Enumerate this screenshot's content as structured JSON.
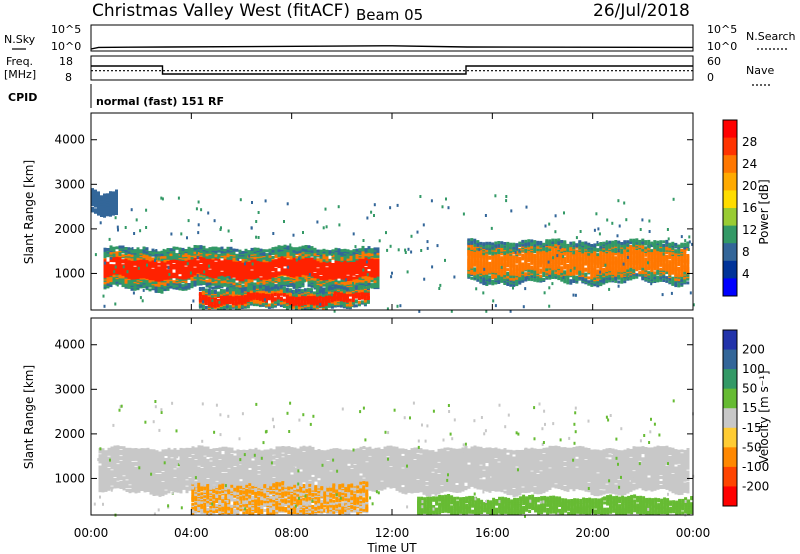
{
  "header": {
    "station": "Christmas Valley West (fitACF)",
    "beam": "Beam 05",
    "date": "26/Jul/2018"
  },
  "top_panels": {
    "nsky": {
      "label": "N.Sky",
      "ticks": [
        "10^5",
        "10^0"
      ]
    },
    "nsearch": {
      "label": "N.Search",
      "ticks": [
        "10^5",
        "10^0"
      ]
    },
    "freq": {
      "label_line1": "Freq.",
      "label_line2": "[MHz]",
      "ticks": [
        "18",
        "8"
      ]
    },
    "nave": {
      "label": "Nave",
      "ticks": [
        "60",
        "0"
      ]
    },
    "cpid": {
      "label": "CPID",
      "value": "normal (fast) 151 RF"
    }
  },
  "power_colorbar": {
    "label": "Power [dB]",
    "ticks": [
      "28",
      "24",
      "20",
      "16",
      "12",
      "8",
      "4"
    ],
    "colors": [
      "#ff0000",
      "#ff3300",
      "#ff7700",
      "#ffaa00",
      "#ffdd00",
      "#99cc33",
      "#339966",
      "#336699",
      "#003399",
      "#0000ff"
    ]
  },
  "velocity_colorbar": {
    "label": "Velocity [m s⁻¹]",
    "ticks": [
      "200",
      "100",
      "50",
      "15",
      "-15",
      "-50",
      "-100",
      "-200"
    ],
    "colors": [
      "#2233aa",
      "#336699",
      "#339966",
      "#66bb33",
      "#c8c8c8",
      "#ffcc33",
      "#ff8800",
      "#ff4400",
      "#ff0000"
    ]
  },
  "colors": {
    "power_strong": "#ff2200",
    "power_mid": "#ff7700",
    "power_edge": "#339966",
    "power_weak": "#336699",
    "vel_gray": "#c8c8c8",
    "vel_orange": "#ff9900",
    "vel_green": "#66bb33"
  },
  "chart_data": {
    "type": "heatmap",
    "xlabel": "Time UT",
    "ylabel": "Slant Range [km]",
    "x_ticks": [
      "00:00",
      "04:00",
      "08:00",
      "12:00",
      "16:00",
      "20:00",
      "00:00"
    ],
    "y_ticks": [
      "1000",
      "2000",
      "3000",
      "4000"
    ],
    "xlim_hours": [
      0,
      24
    ],
    "ylim_km": [
      180,
      4600
    ],
    "nsky_series": {
      "x_hours": [
        0,
        0.3,
        3,
        12,
        15,
        24
      ],
      "log10_values": [
        0,
        0.4,
        0.5,
        0.8,
        0.5,
        0.4
      ]
    },
    "freq_series": {
      "x_hours": [
        0,
        2.85,
        2.85,
        14.95,
        14.95,
        24
      ],
      "mhz": [
        14,
        14,
        10,
        10,
        14,
        14
      ]
    },
    "nave_series": {
      "x_hours": [
        0,
        2.85,
        2.85,
        14.95,
        14.95,
        24
      ],
      "values": [
        22,
        22,
        22,
        22,
        22,
        22
      ]
    },
    "power_regions": [
      {
        "band": "main",
        "start_h": 0.5,
        "end_h": 11.5,
        "min_km": 700,
        "max_km": 1600,
        "db": 24
      },
      {
        "band": "main",
        "start_h": 15,
        "end_h": 23.8,
        "min_km": 850,
        "max_km": 1750,
        "db": 18
      },
      {
        "band": "low",
        "start_h": 4.3,
        "end_h": 11,
        "min_km": 250,
        "max_km": 700,
        "db": 26
      },
      {
        "band": "high",
        "start_h": 0,
        "end_h": 1,
        "min_km": 2400,
        "max_km": 2900,
        "db": 8
      }
    ],
    "velocity_regions": [
      {
        "band": "main",
        "start_h": 0.3,
        "end_h": 23.8,
        "min_km": 750,
        "max_km": 1700,
        "velocity": 0
      },
      {
        "band": "low",
        "start_h": 4,
        "end_h": 11,
        "min_km": 200,
        "max_km": 900,
        "velocity": -70
      },
      {
        "band": "low",
        "start_h": 13,
        "end_h": 24,
        "min_km": 200,
        "max_km": 600,
        "velocity": 30
      }
    ]
  }
}
